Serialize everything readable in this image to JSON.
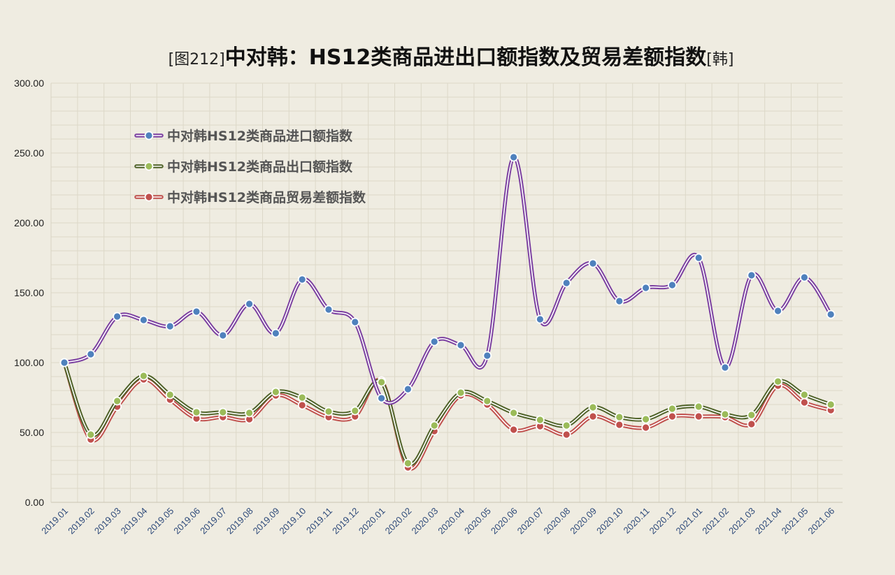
{
  "chart_data": {
    "type": "line",
    "title_prefix": "[图212]",
    "title_main": "中对韩：HS12类商品进出口额指数及贸易差额指数",
    "title_suffix": "[韩]",
    "ylim": [
      0,
      300
    ],
    "yticks": [
      "0.00",
      "50.00",
      "100.00",
      "150.00",
      "200.00",
      "250.00",
      "300.00"
    ],
    "grid": true,
    "legend_position": "top-left",
    "categories": [
      "2019.01",
      "2019.02",
      "2019.03",
      "2019.04",
      "2019.05",
      "2019.06",
      "2019.07",
      "2019.08",
      "2019.09",
      "2019.10",
      "2019.11",
      "2019.12",
      "2020.01",
      "2020.02",
      "2020.03",
      "2020.04",
      "2020.05",
      "2020.06",
      "2020.07",
      "2020.08",
      "2020.09",
      "2020.10",
      "2020.11",
      "2020.12",
      "2021.01",
      "2021.02",
      "2021.03",
      "2021.04",
      "2021.05",
      "2021.06"
    ],
    "series": [
      {
        "name": "中对韩HS12类商品进口额指数",
        "color": "#7b3fa0",
        "marker": "#4f81bd",
        "values": [
          100,
          106,
          133,
          130.5,
          126,
          136.5,
          119.5,
          142,
          121,
          159.5,
          138,
          129,
          74.5,
          81,
          115,
          112.5,
          105,
          247,
          131,
          157,
          171,
          144,
          153.5,
          155.5,
          175,
          96.5,
          162.5,
          137,
          161,
          134.5
        ]
      },
      {
        "name": "中对韩HS12类商品出口额指数",
        "color": "#4f6228",
        "marker": "#9bbb59",
        "values": [
          100,
          48.5,
          72.5,
          90.5,
          77,
          64.5,
          64.5,
          64,
          79,
          75,
          65,
          65.5,
          86,
          28,
          55,
          78.5,
          72.5,
          64,
          59,
          55,
          68,
          61,
          59.5,
          67,
          68.5,
          63,
          62.5,
          86.5,
          77,
          70
        ]
      },
      {
        "name": "中对韩HS12类商品贸易差额指数",
        "color": "#c0504d",
        "marker": "#c0504d",
        "values": [
          100,
          45,
          68.5,
          88,
          73.5,
          60,
          61,
          59.5,
          76.5,
          69.5,
          61,
          61.5,
          87,
          25,
          51,
          76.5,
          70,
          52,
          54.5,
          48.5,
          61.5,
          55.5,
          53.5,
          61.5,
          61.5,
          61,
          56,
          83.5,
          71.5,
          66
        ]
      }
    ]
  }
}
